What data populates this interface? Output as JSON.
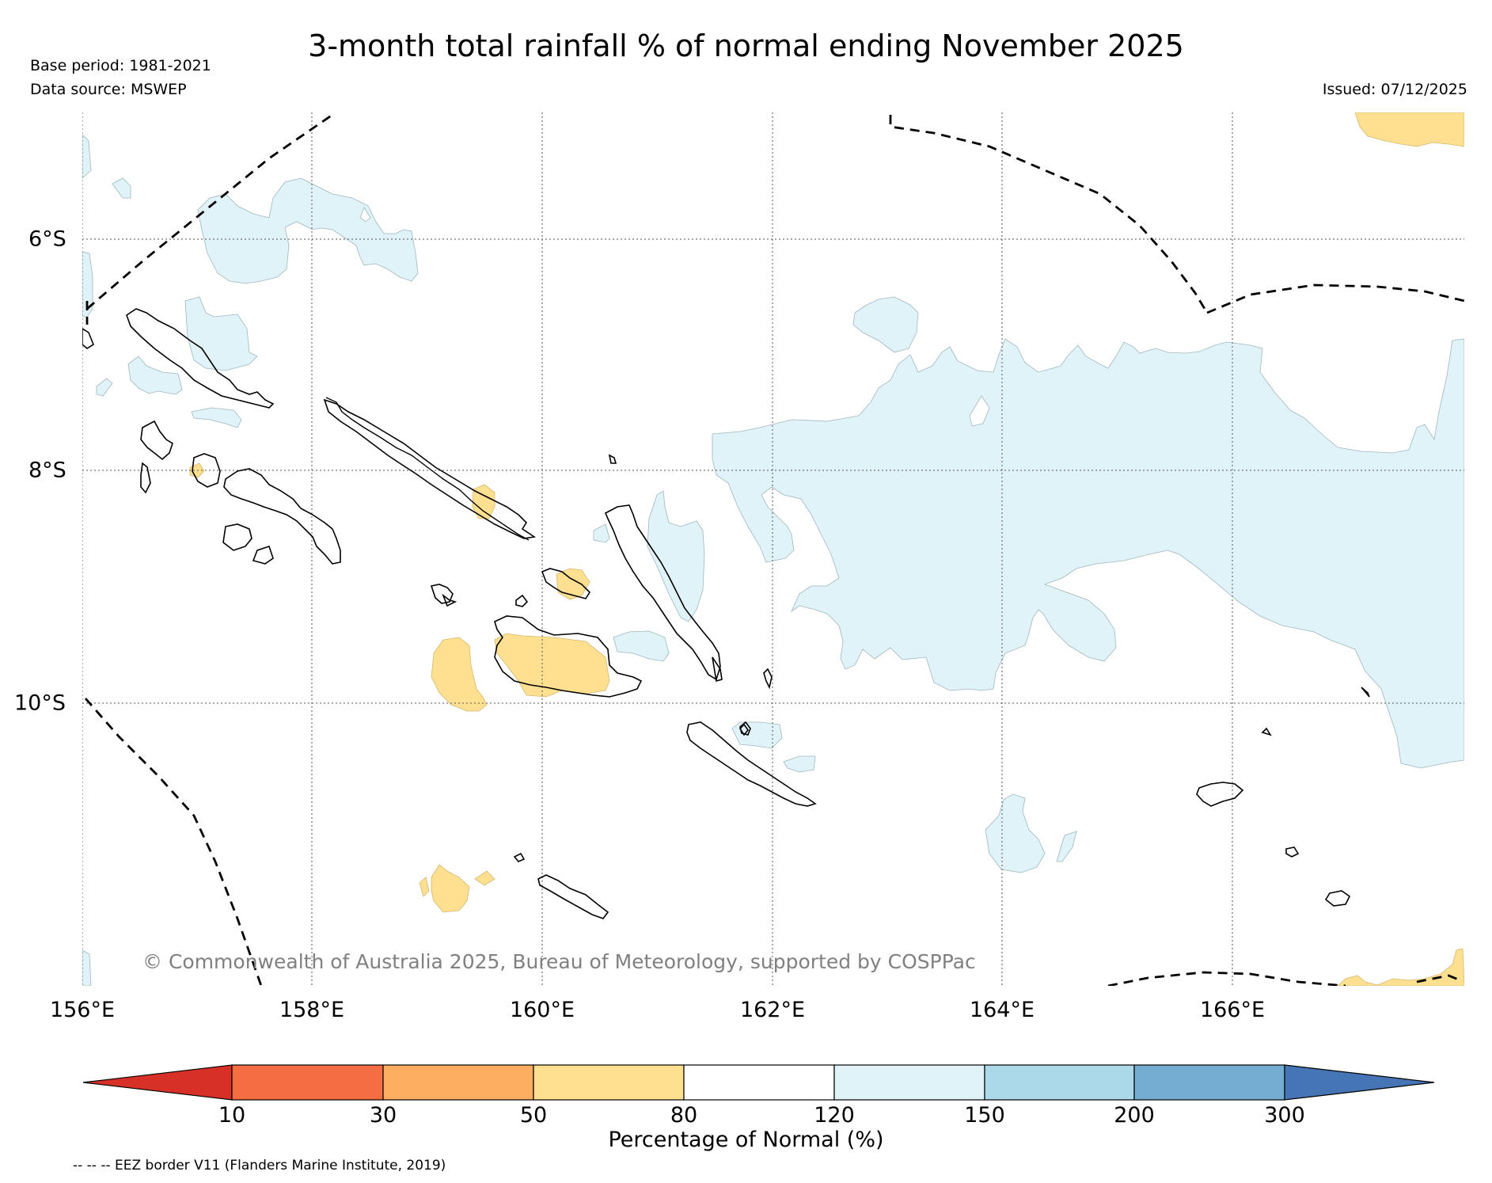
{
  "title": "3-month total rainfall % of normal ending November 2025",
  "base_period": "Base period: 1981-2021",
  "data_source": "Data source: MSWEP",
  "issued": "Issued: 07/12/2025",
  "copyright": "© Commonwealth of Australia 2025, Bureau of Meteorology, supported by COSPPac",
  "lon_labels": [
    "156°E",
    "158°E",
    "160°E",
    "162°E",
    "164°E",
    "166°E"
  ],
  "lat_labels": [
    "6°S",
    "8°S",
    "10°S"
  ],
  "colorbar": {
    "ticks": [
      "10",
      "30",
      "50",
      "80",
      "120",
      "150",
      "200",
      "300"
    ],
    "label": "Percentage of Normal (%)",
    "colors": [
      "#d73027",
      "#f46d43",
      "#fdae61",
      "#fee090",
      "#ffffff",
      "#e0f3f8",
      "#abd9e9",
      "#74add1",
      "#4575b4"
    ]
  },
  "legend_note": "-- -- -- EEZ border V11 (Flanders Marine Institute, 2019)"
}
